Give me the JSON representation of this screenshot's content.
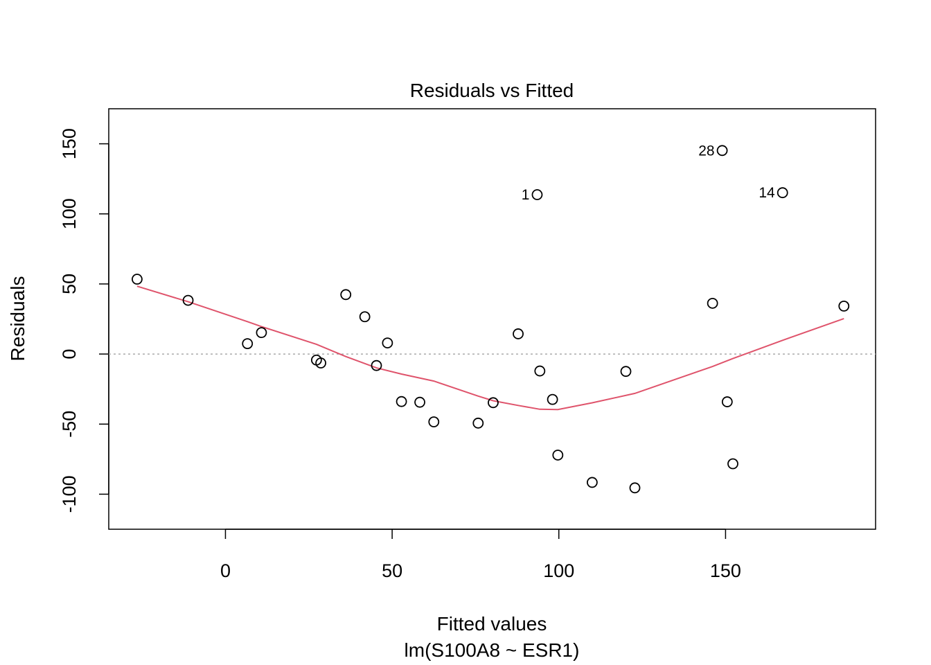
{
  "chart_data": {
    "type": "scatter",
    "title": "Residuals vs Fitted",
    "xlabel": "Fitted values",
    "subtitle": "lm(S100A8 ~ ESR1)",
    "ylabel": "Residuals",
    "xlim": [
      -35,
      195
    ],
    "ylim": [
      -125,
      175
    ],
    "xticks": [
      0,
      50,
      100,
      150
    ],
    "yticks": [
      -100,
      -50,
      0,
      50,
      100,
      150
    ],
    "reference_line": {
      "y": 0,
      "style": "dotted",
      "color": "#aaaaaa"
    },
    "points": [
      {
        "x": -26.5,
        "y": 53.4
      },
      {
        "x": -11.2,
        "y": 38.3
      },
      {
        "x": 6.6,
        "y": 7.4
      },
      {
        "x": 10.8,
        "y": 15.3
      },
      {
        "x": 27.3,
        "y": -4.3
      },
      {
        "x": 28.6,
        "y": -6.4
      },
      {
        "x": 36.1,
        "y": 42.4
      },
      {
        "x": 41.8,
        "y": 26.6
      },
      {
        "x": 45.3,
        "y": -8.2
      },
      {
        "x": 48.6,
        "y": 7.9
      },
      {
        "x": 52.8,
        "y": -33.9
      },
      {
        "x": 58.3,
        "y": -34.4
      },
      {
        "x": 62.5,
        "y": -48.4
      },
      {
        "x": 75.8,
        "y": -49.3
      },
      {
        "x": 80.3,
        "y": -34.7
      },
      {
        "x": 87.8,
        "y": 14.4
      },
      {
        "x": 93.5,
        "y": 113.7,
        "label": "1"
      },
      {
        "x": 94.3,
        "y": -12.1
      },
      {
        "x": 98.1,
        "y": -32.4
      },
      {
        "x": 99.7,
        "y": -72.1
      },
      {
        "x": 110.0,
        "y": -91.6
      },
      {
        "x": 120.1,
        "y": -12.4
      },
      {
        "x": 122.8,
        "y": -95.5
      },
      {
        "x": 146.1,
        "y": 36.2
      },
      {
        "x": 149.0,
        "y": 145.2,
        "label": "28"
      },
      {
        "x": 150.5,
        "y": -34.1
      },
      {
        "x": 152.2,
        "y": -78.3
      },
      {
        "x": 167.1,
        "y": 115.1,
        "label": "14"
      },
      {
        "x": 185.5,
        "y": 34.2
      }
    ],
    "smoother": {
      "color": "#DF536B",
      "x": [
        -26.5,
        -11.2,
        6.6,
        10.8,
        27.3,
        36.1,
        45.3,
        52.8,
        62.5,
        75.8,
        80.3,
        87.8,
        94.3,
        99.7,
        110.0,
        122.8,
        146.1,
        152.2,
        167.1,
        185.5
      ],
      "y": [
        48.4,
        37.3,
        23.1,
        19.6,
        6.9,
        -1.8,
        -9.9,
        -14.3,
        -19.3,
        -30.0,
        -33.3,
        -36.7,
        -39.4,
        -39.6,
        -34.8,
        -28.1,
        -8.9,
        -3.2,
        9.8,
        25.3
      ]
    },
    "grid": false,
    "legend": "none"
  }
}
